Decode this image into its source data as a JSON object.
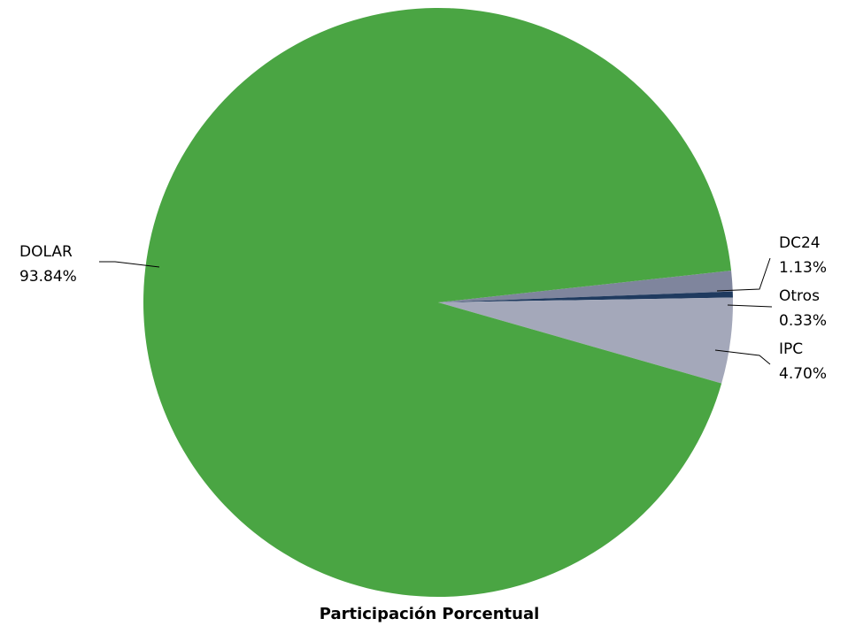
{
  "chart_data": {
    "type": "pie",
    "title": "Participación Porcentual",
    "legend": "none",
    "slices": [
      {
        "category": "DC24",
        "value": 1.13,
        "value_label": "1.13%",
        "color": "#7f859d"
      },
      {
        "category": "Otros",
        "value": 0.33,
        "value_label": "0.33%",
        "color": "#1f3a5f"
      },
      {
        "category": "IPC",
        "value": 4.7,
        "value_label": "4.70%",
        "color": "#a4a8ba"
      },
      {
        "category": "DOLAR",
        "value": 93.84,
        "value_label": "93.84%",
        "color": "#4aa543"
      }
    ]
  }
}
